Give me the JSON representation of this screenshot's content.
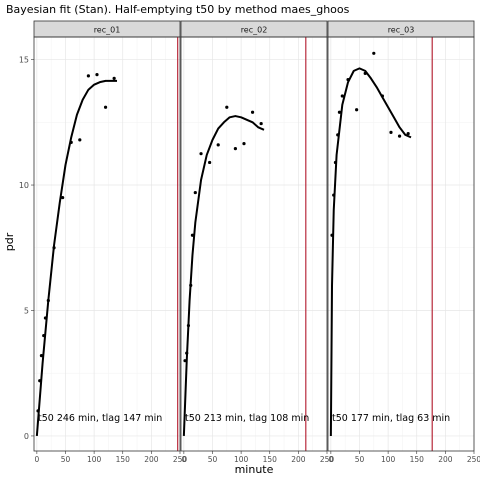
{
  "chart_data": {
    "type": "scatter",
    "title": "Bayesian fit (Stan). Half-emptying t50 by method maes_ghoos",
    "xlabel": "minute",
    "ylabel": "pdr",
    "xlim": [
      -5,
      250
    ],
    "ylim": [
      -0.6,
      15.9
    ],
    "x_ticks": [
      0,
      50,
      100,
      150,
      200,
      250
    ],
    "x_tick_labels": [
      "0",
      "50",
      "100",
      "150",
      "200",
      "250"
    ],
    "y_ticks": [
      0,
      5,
      10,
      15
    ],
    "y_tick_labels": [
      "0",
      "5",
      "10",
      "15"
    ],
    "grid": true,
    "legend": "none",
    "panels": [
      {
        "strip": "rec_01",
        "annotation": "t50 246 min,  tlag 147 min",
        "t50_line": 246,
        "points": [
          [
            2,
            1.0
          ],
          [
            5,
            2.2
          ],
          [
            8,
            3.2
          ],
          [
            12,
            4.0
          ],
          [
            15,
            4.7
          ],
          [
            20,
            5.4
          ],
          [
            30,
            7.5
          ],
          [
            45,
            9.5
          ],
          [
            60,
            11.7
          ],
          [
            75,
            11.8
          ],
          [
            90,
            14.35
          ],
          [
            105,
            14.4
          ],
          [
            120,
            13.1
          ],
          [
            135,
            14.25
          ]
        ],
        "fit": [
          [
            0,
            0
          ],
          [
            10,
            2.9
          ],
          [
            20,
            5.4
          ],
          [
            30,
            7.6
          ],
          [
            40,
            9.3
          ],
          [
            50,
            10.8
          ],
          [
            60,
            11.9
          ],
          [
            70,
            12.8
          ],
          [
            80,
            13.4
          ],
          [
            90,
            13.8
          ],
          [
            100,
            14.0
          ],
          [
            110,
            14.1
          ],
          [
            120,
            14.15
          ],
          [
            130,
            14.15
          ],
          [
            140,
            14.15
          ]
        ]
      },
      {
        "strip": "rec_02",
        "annotation": "t50 213 min,  tlag 108 min",
        "t50_line": 213,
        "points": [
          [
            2,
            3.0
          ],
          [
            5,
            3.3
          ],
          [
            8,
            4.4
          ],
          [
            12,
            6.0
          ],
          [
            15,
            8.0
          ],
          [
            20,
            9.7
          ],
          [
            30,
            11.25
          ],
          [
            45,
            10.9
          ],
          [
            60,
            11.6
          ],
          [
            75,
            13.1
          ],
          [
            90,
            11.45
          ],
          [
            105,
            11.65
          ],
          [
            120,
            12.9
          ],
          [
            135,
            12.45
          ]
        ],
        "fit": [
          [
            0,
            0
          ],
          [
            5,
            3.0
          ],
          [
            10,
            5.4
          ],
          [
            15,
            7.2
          ],
          [
            20,
            8.5
          ],
          [
            30,
            10.2
          ],
          [
            40,
            11.2
          ],
          [
            50,
            11.8
          ],
          [
            60,
            12.25
          ],
          [
            70,
            12.5
          ],
          [
            80,
            12.7
          ],
          [
            90,
            12.75
          ],
          [
            100,
            12.7
          ],
          [
            110,
            12.6
          ],
          [
            120,
            12.5
          ],
          [
            130,
            12.3
          ],
          [
            140,
            12.2
          ]
        ]
      },
      {
        "strip": "rec_03",
        "annotation": "t50 177 min,  tlag 63 min",
        "t50_line": 177,
        "points": [
          [
            2,
            8.0
          ],
          [
            5,
            9.6
          ],
          [
            8,
            10.9
          ],
          [
            12,
            12.0
          ],
          [
            15,
            12.9
          ],
          [
            20,
            13.55
          ],
          [
            30,
            14.2
          ],
          [
            45,
            13.0
          ],
          [
            60,
            14.45
          ],
          [
            75,
            15.25
          ],
          [
            90,
            13.55
          ],
          [
            105,
            12.1
          ],
          [
            120,
            11.95
          ],
          [
            135,
            12.05
          ]
        ],
        "fit": [
          [
            0,
            0
          ],
          [
            2,
            6.0
          ],
          [
            5,
            9.0
          ],
          [
            10,
            11.2
          ],
          [
            20,
            13.2
          ],
          [
            30,
            14.1
          ],
          [
            40,
            14.55
          ],
          [
            50,
            14.65
          ],
          [
            60,
            14.55
          ],
          [
            70,
            14.25
          ],
          [
            80,
            13.9
          ],
          [
            90,
            13.5
          ],
          [
            100,
            13.1
          ],
          [
            110,
            12.7
          ],
          [
            120,
            12.3
          ],
          [
            130,
            12.0
          ],
          [
            140,
            11.9
          ]
        ]
      }
    ]
  }
}
